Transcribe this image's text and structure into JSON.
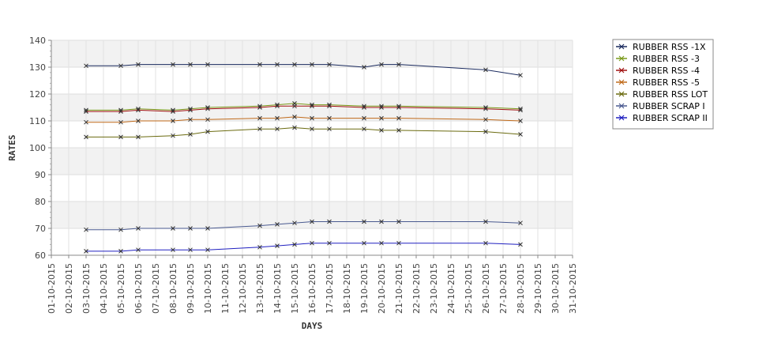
{
  "chart_data": {
    "type": "line",
    "title": "",
    "xlabel": "DAYS",
    "ylabel": "RATES",
    "ylim": [
      60,
      140
    ],
    "yticks": [
      60,
      70,
      80,
      90,
      100,
      110,
      120,
      130,
      140
    ],
    "grid": true,
    "legend_position": "right",
    "categories": [
      "01-10-2015",
      "02-10-2015",
      "03-10-2015",
      "04-10-2015",
      "05-10-2015",
      "06-10-2015",
      "07-10-2015",
      "08-10-2015",
      "09-10-2015",
      "10-10-2015",
      "11-10-2015",
      "12-10-2015",
      "13-10-2015",
      "14-10-2015",
      "15-10-2015",
      "16-10-2015",
      "17-10-2015",
      "18-10-2015",
      "19-10-2015",
      "20-10-2015",
      "21-10-2015",
      "22-10-2015",
      "23-10-2015",
      "24-10-2015",
      "25-10-2015",
      "26-10-2015",
      "27-10-2015",
      "28-10-2015",
      "29-10-2015",
      "30-10-2015",
      "31-10-2015"
    ],
    "series": [
      {
        "name": "RUBBER RSS -1X",
        "color": "#1a2a5e",
        "points": [
          [
            "03-10-2015",
            130.5
          ],
          [
            "05-10-2015",
            130.5
          ],
          [
            "06-10-2015",
            131
          ],
          [
            "08-10-2015",
            131
          ],
          [
            "09-10-2015",
            131
          ],
          [
            "10-10-2015",
            131
          ],
          [
            "13-10-2015",
            131
          ],
          [
            "14-10-2015",
            131
          ],
          [
            "15-10-2015",
            131
          ],
          [
            "16-10-2015",
            131
          ],
          [
            "17-10-2015",
            131
          ],
          [
            "19-10-2015",
            130
          ],
          [
            "20-10-2015",
            131
          ],
          [
            "21-10-2015",
            131
          ],
          [
            "26-10-2015",
            129
          ],
          [
            "28-10-2015",
            127
          ]
        ]
      },
      {
        "name": "RUBBER RSS -3",
        "color": "#7a9a1a",
        "points": [
          [
            "03-10-2015",
            114
          ],
          [
            "05-10-2015",
            114
          ],
          [
            "06-10-2015",
            114.5
          ],
          [
            "08-10-2015",
            114
          ],
          [
            "09-10-2015",
            114.5
          ],
          [
            "10-10-2015",
            115
          ],
          [
            "13-10-2015",
            115.5
          ],
          [
            "14-10-2015",
            116
          ],
          [
            "15-10-2015",
            116.5
          ],
          [
            "16-10-2015",
            116
          ],
          [
            "17-10-2015",
            116
          ],
          [
            "19-10-2015",
            115.5
          ],
          [
            "20-10-2015",
            115.5
          ],
          [
            "21-10-2015",
            115.5
          ],
          [
            "26-10-2015",
            115
          ],
          [
            "28-10-2015",
            114.5
          ]
        ]
      },
      {
        "name": "RUBBER RSS -4",
        "color": "#a01010",
        "points": [
          [
            "03-10-2015",
            113.5
          ],
          [
            "05-10-2015",
            113.5
          ],
          [
            "06-10-2015",
            114
          ],
          [
            "08-10-2015",
            113.5
          ],
          [
            "09-10-2015",
            114
          ],
          [
            "10-10-2015",
            114.5
          ],
          [
            "13-10-2015",
            115
          ],
          [
            "14-10-2015",
            115.5
          ],
          [
            "15-10-2015",
            115.5
          ],
          [
            "16-10-2015",
            115.5
          ],
          [
            "17-10-2015",
            115.5
          ],
          [
            "19-10-2015",
            115
          ],
          [
            "20-10-2015",
            115
          ],
          [
            "21-10-2015",
            115
          ],
          [
            "26-10-2015",
            114.5
          ],
          [
            "28-10-2015",
            114
          ]
        ]
      },
      {
        "name": "RUBBER RSS -5",
        "color": "#c06a1a",
        "points": [
          [
            "03-10-2015",
            109.5
          ],
          [
            "05-10-2015",
            109.5
          ],
          [
            "06-10-2015",
            110
          ],
          [
            "08-10-2015",
            110
          ],
          [
            "09-10-2015",
            110.5
          ],
          [
            "10-10-2015",
            110.5
          ],
          [
            "13-10-2015",
            111
          ],
          [
            "14-10-2015",
            111
          ],
          [
            "15-10-2015",
            111.5
          ],
          [
            "16-10-2015",
            111
          ],
          [
            "17-10-2015",
            111
          ],
          [
            "19-10-2015",
            111
          ],
          [
            "20-10-2015",
            111
          ],
          [
            "21-10-2015",
            111
          ],
          [
            "26-10-2015",
            110.5
          ],
          [
            "28-10-2015",
            110
          ]
        ]
      },
      {
        "name": "RUBBER RSS LOT",
        "color": "#6b6b10",
        "points": [
          [
            "03-10-2015",
            104
          ],
          [
            "05-10-2015",
            104
          ],
          [
            "06-10-2015",
            104
          ],
          [
            "08-10-2015",
            104.5
          ],
          [
            "09-10-2015",
            105
          ],
          [
            "10-10-2015",
            106
          ],
          [
            "13-10-2015",
            107
          ],
          [
            "14-10-2015",
            107
          ],
          [
            "15-10-2015",
            107.5
          ],
          [
            "16-10-2015",
            107
          ],
          [
            "17-10-2015",
            107
          ],
          [
            "19-10-2015",
            107
          ],
          [
            "20-10-2015",
            106.5
          ],
          [
            "21-10-2015",
            106.5
          ],
          [
            "26-10-2015",
            106
          ],
          [
            "28-10-2015",
            105
          ]
        ]
      },
      {
        "name": "RUBBER SCRAP I",
        "color": "#4a5a90",
        "points": [
          [
            "03-10-2015",
            69.5
          ],
          [
            "05-10-2015",
            69.5
          ],
          [
            "06-10-2015",
            70
          ],
          [
            "08-10-2015",
            70
          ],
          [
            "09-10-2015",
            70
          ],
          [
            "10-10-2015",
            70
          ],
          [
            "13-10-2015",
            71
          ],
          [
            "14-10-2015",
            71.5
          ],
          [
            "15-10-2015",
            72
          ],
          [
            "16-10-2015",
            72.5
          ],
          [
            "17-10-2015",
            72.5
          ],
          [
            "19-10-2015",
            72.5
          ],
          [
            "20-10-2015",
            72.5
          ],
          [
            "21-10-2015",
            72.5
          ],
          [
            "26-10-2015",
            72.5
          ],
          [
            "28-10-2015",
            72
          ]
        ]
      },
      {
        "name": "RUBBER SCRAP II",
        "color": "#2020c0",
        "points": [
          [
            "03-10-2015",
            61.5
          ],
          [
            "05-10-2015",
            61.5
          ],
          [
            "06-10-2015",
            62
          ],
          [
            "08-10-2015",
            62
          ],
          [
            "09-10-2015",
            62
          ],
          [
            "10-10-2015",
            62
          ],
          [
            "13-10-2015",
            63
          ],
          [
            "14-10-2015",
            63.5
          ],
          [
            "15-10-2015",
            64
          ],
          [
            "16-10-2015",
            64.5
          ],
          [
            "17-10-2015",
            64.5
          ],
          [
            "19-10-2015",
            64.5
          ],
          [
            "20-10-2015",
            64.5
          ],
          [
            "21-10-2015",
            64.5
          ],
          [
            "26-10-2015",
            64.5
          ],
          [
            "28-10-2015",
            64
          ]
        ]
      }
    ]
  }
}
